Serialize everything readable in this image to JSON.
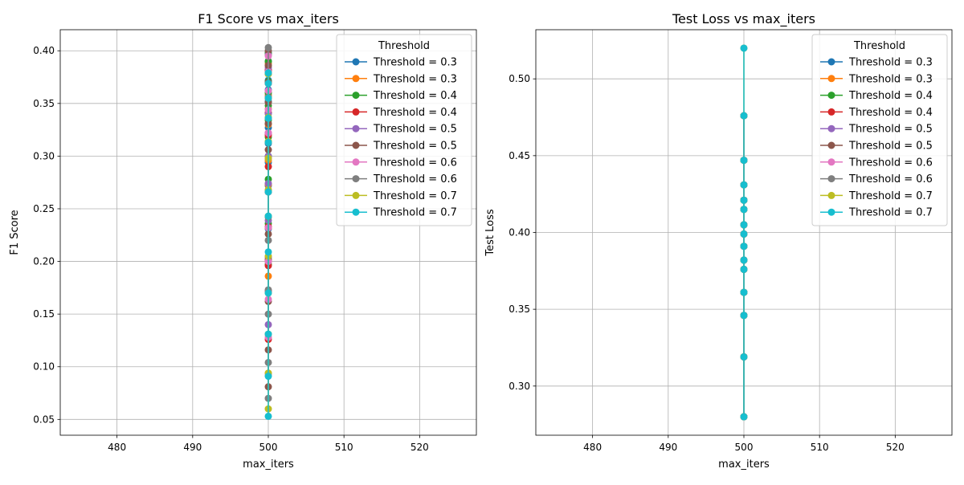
{
  "chart_data": [
    {
      "type": "line",
      "title": "F1 Score vs max_iters",
      "xlabel": "max_iters",
      "ylabel": "F1 Score",
      "xlim": [
        472.5,
        527.5
      ],
      "ylim": [
        0.035,
        0.42
      ],
      "xticks": [
        480,
        490,
        500,
        510,
        520
      ],
      "yticks": [
        0.05,
        0.1,
        0.15,
        0.2,
        0.25,
        0.3,
        0.35,
        0.4
      ],
      "grid": true,
      "legend": {
        "title": "Threshold",
        "placement": "top-right"
      },
      "series": [
        {
          "name": "Threshold = 0.3",
          "color": "#1f77b4",
          "x": [
            500,
            500,
            500,
            500,
            500,
            500,
            500,
            500,
            500,
            500,
            500,
            500
          ],
          "y": [
            0.231,
            0.272,
            0.294,
            0.312,
            0.327,
            0.341,
            0.352,
            0.363,
            0.372,
            0.381,
            0.39,
            0.398
          ]
        },
        {
          "name": "Threshold = 0.3",
          "color": "#ff7f0e",
          "x": [
            500,
            500,
            500,
            500,
            500,
            500,
            500,
            500,
            500,
            500,
            500,
            500
          ],
          "y": [
            0.186,
            0.232,
            0.273,
            0.296,
            0.313,
            0.33,
            0.345,
            0.358,
            0.369,
            0.379,
            0.388,
            0.396
          ]
        },
        {
          "name": "Threshold = 0.4",
          "color": "#2ca02c",
          "x": [
            500,
            500,
            500,
            500,
            500,
            500,
            500,
            500,
            500,
            500,
            500,
            500
          ],
          "y": [
            0.197,
            0.236,
            0.278,
            0.3,
            0.318,
            0.334,
            0.348,
            0.36,
            0.371,
            0.381,
            0.39,
            0.398
          ]
        },
        {
          "name": "Threshold = 0.4",
          "color": "#d62728",
          "x": [
            500,
            500,
            500,
            500,
            500,
            500,
            500,
            500,
            500,
            500,
            500,
            500
          ],
          "y": [
            0.126,
            0.172,
            0.196,
            0.2,
            0.233,
            0.266,
            0.29,
            0.32,
            0.341,
            0.355,
            0.369,
            0.382
          ]
        },
        {
          "name": "Threshold = 0.5",
          "color": "#9467bd",
          "x": [
            500,
            500,
            500,
            500,
            500,
            500,
            500,
            500,
            500,
            500,
            500,
            500
          ],
          "y": [
            0.14,
            0.171,
            0.204,
            0.239,
            0.274,
            0.3,
            0.322,
            0.34,
            0.356,
            0.37,
            0.384,
            0.396
          ]
        },
        {
          "name": "Threshold = 0.5",
          "color": "#8c564b",
          "x": [
            500,
            500,
            500,
            500,
            500,
            500,
            500,
            500,
            500,
            500,
            500,
            500
          ],
          "y": [
            0.081,
            0.116,
            0.162,
            0.202,
            0.226,
            0.266,
            0.306,
            0.331,
            0.351,
            0.37,
            0.386,
            0.4
          ]
        },
        {
          "name": "Threshold = 0.6",
          "color": "#e377c2",
          "x": [
            500,
            500,
            500,
            500,
            500,
            500,
            500,
            500,
            500,
            500,
            500,
            500
          ],
          "y": [
            0.093,
            0.128,
            0.164,
            0.2,
            0.232,
            0.268,
            0.298,
            0.322,
            0.344,
            0.362,
            0.38,
            0.395
          ]
        },
        {
          "name": "Threshold = 0.6",
          "color": "#7f7f7f",
          "x": [
            500,
            500,
            500,
            500,
            500,
            500,
            500,
            500,
            500,
            500,
            500,
            500
          ],
          "y": [
            0.07,
            0.104,
            0.15,
            0.173,
            0.22,
            0.242,
            0.266,
            0.313,
            0.336,
            0.356,
            0.378,
            0.403
          ]
        },
        {
          "name": "Threshold = 0.7",
          "color": "#bcbd22",
          "x": [
            500,
            500,
            500,
            500,
            500,
            500,
            500,
            500,
            500,
            500,
            500,
            500
          ],
          "y": [
            0.06,
            0.094,
            0.131,
            0.17,
            0.205,
            0.243,
            0.268,
            0.298,
            0.314,
            0.337,
            0.355,
            0.378
          ]
        },
        {
          "name": "Threshold = 0.7",
          "color": "#17becf",
          "x": [
            500,
            500,
            500,
            500,
            500,
            500,
            500,
            500,
            500,
            500,
            500,
            500
          ],
          "y": [
            0.053,
            0.091,
            0.131,
            0.17,
            0.209,
            0.243,
            0.266,
            0.313,
            0.336,
            0.355,
            0.369,
            0.379
          ]
        }
      ]
    },
    {
      "type": "line",
      "title": "Test Loss vs max_iters",
      "xlabel": "max_iters",
      "ylabel": "Test Loss",
      "xlim": [
        472.5,
        527.5
      ],
      "ylim": [
        0.268,
        0.532
      ],
      "xticks": [
        480,
        490,
        500,
        510,
        520
      ],
      "yticks": [
        0.3,
        0.35,
        0.4,
        0.45,
        0.5
      ],
      "grid": true,
      "legend": {
        "title": "Threshold",
        "placement": "top-right"
      },
      "series": [
        {
          "name": "Threshold = 0.3",
          "color": "#1f77b4",
          "x": [
            500,
            500,
            500,
            500,
            500,
            500,
            500,
            500,
            500,
            500,
            500,
            500,
            500,
            500
          ],
          "y": [
            0.28,
            0.319,
            0.346,
            0.361,
            0.376,
            0.382,
            0.391,
            0.399,
            0.405,
            0.415,
            0.421,
            0.431,
            0.447,
            0.476
          ]
        },
        {
          "name": "Threshold = 0.3",
          "color": "#ff7f0e",
          "x": [
            500,
            500,
            500,
            500,
            500,
            500,
            500,
            500,
            500,
            500,
            500,
            500,
            500,
            500
          ],
          "y": [
            0.28,
            0.319,
            0.346,
            0.361,
            0.376,
            0.382,
            0.391,
            0.399,
            0.405,
            0.415,
            0.421,
            0.431,
            0.447,
            0.476
          ]
        },
        {
          "name": "Threshold = 0.4",
          "color": "#2ca02c",
          "x": [
            500,
            500,
            500,
            500,
            500,
            500,
            500,
            500,
            500,
            500,
            500,
            500,
            500,
            500
          ],
          "y": [
            0.28,
            0.319,
            0.346,
            0.361,
            0.376,
            0.382,
            0.391,
            0.399,
            0.405,
            0.415,
            0.421,
            0.431,
            0.447,
            0.476
          ]
        },
        {
          "name": "Threshold = 0.4",
          "color": "#d62728",
          "x": [
            500,
            500,
            500,
            500,
            500,
            500,
            500,
            500,
            500,
            500,
            500,
            500,
            500,
            500
          ],
          "y": [
            0.28,
            0.319,
            0.346,
            0.361,
            0.376,
            0.382,
            0.391,
            0.399,
            0.405,
            0.415,
            0.421,
            0.431,
            0.447,
            0.476
          ]
        },
        {
          "name": "Threshold = 0.5",
          "color": "#9467bd",
          "x": [
            500,
            500,
            500,
            500,
            500,
            500,
            500,
            500,
            500,
            500,
            500,
            500,
            500,
            500
          ],
          "y": [
            0.28,
            0.319,
            0.346,
            0.361,
            0.376,
            0.382,
            0.391,
            0.399,
            0.405,
            0.415,
            0.421,
            0.431,
            0.447,
            0.476
          ]
        },
        {
          "name": "Threshold = 0.5",
          "color": "#8c564b",
          "x": [
            500,
            500,
            500,
            500,
            500,
            500,
            500,
            500,
            500,
            500,
            500,
            500,
            500,
            500
          ],
          "y": [
            0.28,
            0.319,
            0.346,
            0.361,
            0.376,
            0.382,
            0.391,
            0.399,
            0.405,
            0.415,
            0.421,
            0.431,
            0.447,
            0.476
          ]
        },
        {
          "name": "Threshold = 0.6",
          "color": "#e377c2",
          "x": [
            500,
            500,
            500,
            500,
            500,
            500,
            500,
            500,
            500,
            500,
            500,
            500,
            500,
            500
          ],
          "y": [
            0.28,
            0.319,
            0.346,
            0.361,
            0.376,
            0.382,
            0.391,
            0.399,
            0.405,
            0.415,
            0.421,
            0.431,
            0.447,
            0.476
          ]
        },
        {
          "name": "Threshold = 0.6",
          "color": "#7f7f7f",
          "x": [
            500,
            500,
            500,
            500,
            500,
            500,
            500,
            500,
            500,
            500,
            500,
            500,
            500,
            500
          ],
          "y": [
            0.28,
            0.319,
            0.346,
            0.361,
            0.376,
            0.382,
            0.391,
            0.399,
            0.405,
            0.415,
            0.421,
            0.431,
            0.447,
            0.476
          ]
        },
        {
          "name": "Threshold = 0.7",
          "color": "#bcbd22",
          "x": [
            500,
            500,
            500,
            500,
            500,
            500,
            500,
            500,
            500,
            500,
            500,
            500,
            500,
            500,
            500
          ],
          "y": [
            0.28,
            0.319,
            0.346,
            0.361,
            0.376,
            0.382,
            0.391,
            0.399,
            0.405,
            0.415,
            0.421,
            0.431,
            0.447,
            0.476,
            0.52
          ]
        },
        {
          "name": "Threshold = 0.7",
          "color": "#17becf",
          "x": [
            500,
            500,
            500,
            500,
            500,
            500,
            500,
            500,
            500,
            500,
            500,
            500,
            500,
            500,
            500
          ],
          "y": [
            0.28,
            0.319,
            0.346,
            0.361,
            0.376,
            0.382,
            0.391,
            0.399,
            0.405,
            0.415,
            0.421,
            0.431,
            0.447,
            0.476,
            0.52
          ]
        }
      ]
    }
  ]
}
